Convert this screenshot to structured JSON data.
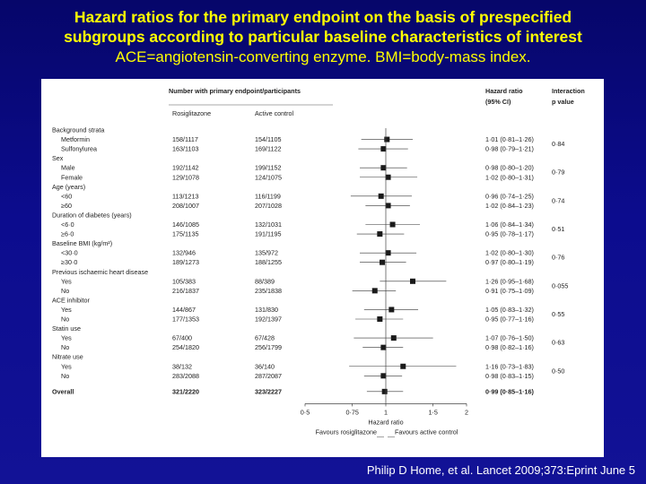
{
  "title": {
    "line1": "Hazard ratios for the primary endpoint on the basis of prespecified",
    "line2": "subgroups according to particular baseline characteristics of interest",
    "line3": "ACE=angiotensin-converting enzyme. BMI=body-mass index."
  },
  "citation": "Philip D Home, et al. Lancet 2009;373:Eprint June 5",
  "colors": {
    "title": "#ffff00",
    "background": "#0c0c8e",
    "marker": "#1a1a1a"
  },
  "chart_data": {
    "type": "forest",
    "header": {
      "number_label": "Number with primary endpoint/participants",
      "col_rosi": "Rosiglitazone",
      "col_active": "Active control",
      "hr_label_1": "Hazard ratio",
      "hr_label_2": "(95% CI)",
      "int_label_1": "Interaction",
      "int_label_2": "p value"
    },
    "x_axis": {
      "scale": "log",
      "ticks": [
        "0·5",
        "0·75",
        "1",
        "1·5",
        "2"
      ],
      "tick_values": [
        0.5,
        0.75,
        1,
        1.5,
        2
      ],
      "xlim": [
        0.5,
        2
      ],
      "label": "Hazard ratio",
      "left_label": "Favours rosiglitazone",
      "right_label": "Favours active control"
    },
    "groups": [
      {
        "name": "Background strata",
        "p": "0·84",
        "rows": [
          {
            "label": "Metformin",
            "rosi": "158/1117",
            "active": "154/1105",
            "hr": 1.01,
            "lo": 0.81,
            "hi": 1.26,
            "ci_text": "1·01 (0·81–1·26)"
          },
          {
            "label": "Sulfonylurea",
            "rosi": "163/1103",
            "active": "169/1122",
            "hr": 0.98,
            "lo": 0.79,
            "hi": 1.21,
            "ci_text": "0·98 (0·79–1·21)"
          }
        ]
      },
      {
        "name": "Sex",
        "p": "0·79",
        "rows": [
          {
            "label": "Male",
            "rosi": "192/1142",
            "active": "199/1152",
            "hr": 0.98,
            "lo": 0.8,
            "hi": 1.2,
            "ci_text": "0·98 (0·80–1·20)"
          },
          {
            "label": "Female",
            "rosi": "129/1078",
            "active": "124/1075",
            "hr": 1.02,
            "lo": 0.8,
            "hi": 1.31,
            "ci_text": "1·02 (0·80–1·31)"
          }
        ]
      },
      {
        "name": "Age (years)",
        "p": "0·74",
        "rows": [
          {
            "label": "<60",
            "rosi": "113/1213",
            "active": "116/1199",
            "hr": 0.96,
            "lo": 0.74,
            "hi": 1.25,
            "ci_text": "0·96 (0·74–1·25)"
          },
          {
            "label": "≥60",
            "rosi": "208/1007",
            "active": "207/1028",
            "hr": 1.02,
            "lo": 0.84,
            "hi": 1.23,
            "ci_text": "1·02 (0·84–1·23)"
          }
        ]
      },
      {
        "name": "Duration of diabetes (years)",
        "p": "0·51",
        "rows": [
          {
            "label": "<6·0",
            "rosi": "146/1085",
            "active": "132/1031",
            "hr": 1.06,
            "lo": 0.84,
            "hi": 1.34,
            "ci_text": "1·06 (0·84–1·34)"
          },
          {
            "label": "≥6·0",
            "rosi": "175/1135",
            "active": "191/1195",
            "hr": 0.95,
            "lo": 0.78,
            "hi": 1.17,
            "ci_text": "0·95 (0·78–1·17)"
          }
        ]
      },
      {
        "name": "Baseline BMI (kg/m²)",
        "p": "0·76",
        "rows": [
          {
            "label": "<30·0",
            "rosi": "132/946",
            "active": "135/972",
            "hr": 1.02,
            "lo": 0.8,
            "hi": 1.3,
            "ci_text": "1·02 (0·80–1·30)"
          },
          {
            "label": "≥30·0",
            "rosi": "189/1273",
            "active": "188/1255",
            "hr": 0.97,
            "lo": 0.8,
            "hi": 1.19,
            "ci_text": "0·97 (0·80–1·19)"
          }
        ]
      },
      {
        "name": "Previous ischaemic heart disease",
        "p": "0·055",
        "rows": [
          {
            "label": "Yes",
            "rosi": "105/383",
            "active": "88/389",
            "hr": 1.26,
            "lo": 0.95,
            "hi": 1.68,
            "ci_text": "1·26 (0·95–1·68)"
          },
          {
            "label": "No",
            "rosi": "216/1837",
            "active": "235/1838",
            "hr": 0.91,
            "lo": 0.75,
            "hi": 1.09,
            "ci_text": "0·91 (0·75–1·09)"
          }
        ]
      },
      {
        "name": "ACE inhibitor",
        "p": "0·55",
        "rows": [
          {
            "label": "Yes",
            "rosi": "144/867",
            "active": "131/830",
            "hr": 1.05,
            "lo": 0.83,
            "hi": 1.32,
            "ci_text": "1·05 (0·83–1·32)"
          },
          {
            "label": "No",
            "rosi": "177/1353",
            "active": "192/1397",
            "hr": 0.95,
            "lo": 0.77,
            "hi": 1.16,
            "ci_text": "0·95 (0·77–1·16)"
          }
        ]
      },
      {
        "name": "Statin use",
        "p": "0·63",
        "rows": [
          {
            "label": "Yes",
            "rosi": "67/400",
            "active": "67/428",
            "hr": 1.07,
            "lo": 0.76,
            "hi": 1.5,
            "ci_text": "1·07 (0·76–1·50)"
          },
          {
            "label": "No",
            "rosi": "254/1820",
            "active": "256/1799",
            "hr": 0.98,
            "lo": 0.82,
            "hi": 1.16,
            "ci_text": "0·98 (0·82–1·16)"
          }
        ]
      },
      {
        "name": "Nitrate use",
        "p": "0·50",
        "rows": [
          {
            "label": "Yes",
            "rosi": "38/132",
            "active": "36/140",
            "hr": 1.16,
            "lo": 0.73,
            "hi": 1.83,
            "ci_text": "1·16 (0·73–1·83)"
          },
          {
            "label": "No",
            "rosi": "283/2088",
            "active": "287/2087",
            "hr": 0.98,
            "lo": 0.83,
            "hi": 1.15,
            "ci_text": "0·98 (0·83–1·15)"
          }
        ]
      }
    ],
    "overall": {
      "label": "Overall",
      "rosi": "321/2220",
      "active": "323/2227",
      "hr": 0.99,
      "lo": 0.85,
      "hi": 1.16,
      "ci_text": "0·99 (0·85–1·16)"
    }
  }
}
